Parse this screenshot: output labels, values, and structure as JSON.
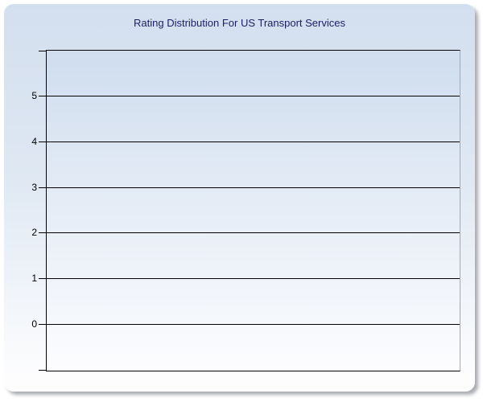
{
  "theme": {
    "page-bg": "#ffffff",
    "panel-grad-top": "#d3dfef",
    "panel-grad-mid": "#dfe8f3",
    "panel-grad-bottom": "#fdfdfe",
    "plot-grad-top": "#cfddee",
    "plot-grad-bottom": "#fdfdff",
    "title-color": "#1e1e64",
    "axis-color": "#000000",
    "grid-color": "#000000",
    "plot-right-border": "#a3a9b1",
    "label-color": "#000000"
  },
  "chart_data": {
    "type": "bar",
    "title": "Rating Distribution For US Transport Services",
    "categories": [],
    "series": [],
    "xlabel": "",
    "ylabel": "",
    "yticks": [
      5,
      4,
      3,
      2,
      1,
      0
    ],
    "ylim": [
      -1,
      6
    ],
    "grid": true,
    "legend": false
  }
}
